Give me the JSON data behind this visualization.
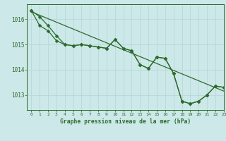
{
  "background_color": "#cce8e8",
  "grid_color": "#b8d8d8",
  "line_color": "#2d6a2d",
  "title": "Graphe pression niveau de la mer (hPa)",
  "xlim": [
    -0.5,
    23
  ],
  "ylim": [
    1012.4,
    1016.6
  ],
  "yticks": [
    1013,
    1014,
    1015,
    1016
  ],
  "xticks": [
    0,
    1,
    2,
    3,
    4,
    5,
    6,
    7,
    8,
    9,
    10,
    11,
    12,
    13,
    14,
    15,
    16,
    17,
    18,
    19,
    20,
    21,
    22,
    23
  ],
  "series1_y": [
    1016.35,
    1016.1,
    1015.75,
    1015.35,
    1015.0,
    1014.95,
    1015.0,
    1014.95,
    1014.9,
    1014.85,
    1015.2,
    1014.85,
    1014.75,
    1014.2,
    1014.05,
    1014.5,
    1014.45,
    1013.85,
    1012.75,
    1012.65,
    1012.75,
    1013.0,
    1013.35,
    1013.3
  ],
  "series2_y": [
    1016.35,
    1015.75,
    1015.55,
    1015.15,
    1015.0,
    1014.95,
    1015.0,
    1014.95,
    1014.9,
    1014.85,
    1015.2,
    1014.85,
    1014.75,
    1014.2,
    1014.05,
    1014.5,
    1014.45,
    1013.85,
    1012.75,
    1012.65,
    1012.75,
    1013.0,
    1013.35,
    1013.3
  ],
  "trend_x": [
    0,
    23
  ],
  "trend_y": [
    1016.3,
    1013.15
  ],
  "marker_size": 2.5,
  "line_width": 0.9
}
